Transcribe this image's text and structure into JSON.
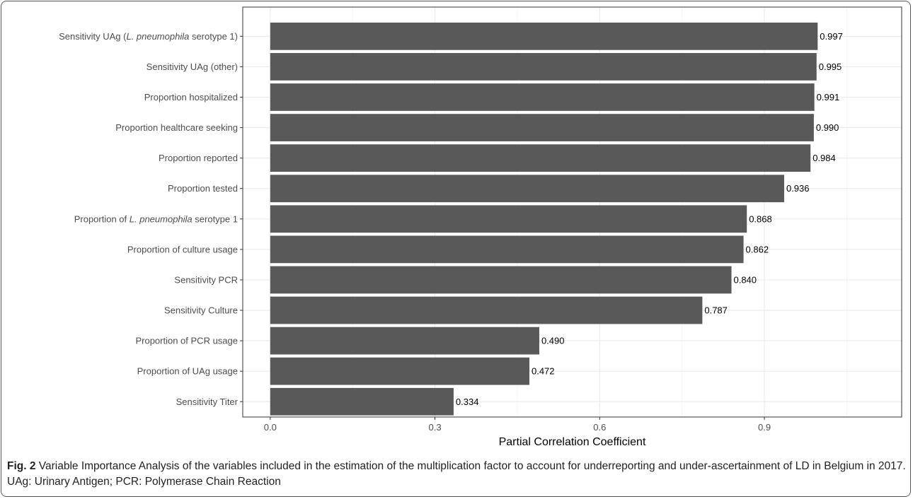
{
  "chart_data": {
    "type": "bar",
    "orientation": "horizontal",
    "xlabel": "Partial Correlation Coefficient",
    "ylabel": "",
    "xlim": [
      -0.05,
      1.15
    ],
    "xticks": [
      0.0,
      0.3,
      0.6,
      0.9
    ],
    "xtick_labels": [
      "0.0",
      "0.3",
      "0.6",
      "0.9"
    ],
    "grid": true,
    "bar_color": "#595959",
    "categories": [
      {
        "prefix": "Sensitivity UAg (",
        "italic": "L. pneumophila",
        "suffix": " serotype 1)"
      },
      {
        "prefix": "Sensitivity UAg (other)",
        "italic": "",
        "suffix": ""
      },
      {
        "prefix": "Proportion hospitalized",
        "italic": "",
        "suffix": ""
      },
      {
        "prefix": "Proportion healthcare seeking",
        "italic": "",
        "suffix": ""
      },
      {
        "prefix": "Proportion reported",
        "italic": "",
        "suffix": ""
      },
      {
        "prefix": "Proportion tested",
        "italic": "",
        "suffix": ""
      },
      {
        "prefix": "Proportion of ",
        "italic": "L. pneumophila",
        "suffix": " serotype 1"
      },
      {
        "prefix": "Proportion of culture usage",
        "italic": "",
        "suffix": ""
      },
      {
        "prefix": "Sensitivity PCR",
        "italic": "",
        "suffix": ""
      },
      {
        "prefix": "Sensitivity Culture",
        "italic": "",
        "suffix": ""
      },
      {
        "prefix": "Proportion of PCR usage",
        "italic": "",
        "suffix": ""
      },
      {
        "prefix": "Proportion of UAg usage",
        "italic": "",
        "suffix": ""
      },
      {
        "prefix": "Sensitivity Titer",
        "italic": "",
        "suffix": ""
      }
    ],
    "values": [
      0.997,
      0.995,
      0.991,
      0.99,
      0.984,
      0.936,
      0.868,
      0.862,
      0.84,
      0.787,
      0.49,
      0.472,
      0.334
    ],
    "value_labels": [
      "0.997",
      "0.995",
      "0.991",
      "0.990",
      "0.984",
      "0.936",
      "0.868",
      "0.862",
      "0.840",
      "0.787",
      "0.490",
      "0.472",
      "0.334"
    ]
  },
  "caption": {
    "label": "Fig. 2",
    "text": " Variable Importance Analysis of the variables included in the estimation of the multiplication factor to account for underreporting and under-ascertainment of LD in Belgium in 2017. UAg: Urinary Antigen; PCR: Polymerase Chain Reaction"
  }
}
